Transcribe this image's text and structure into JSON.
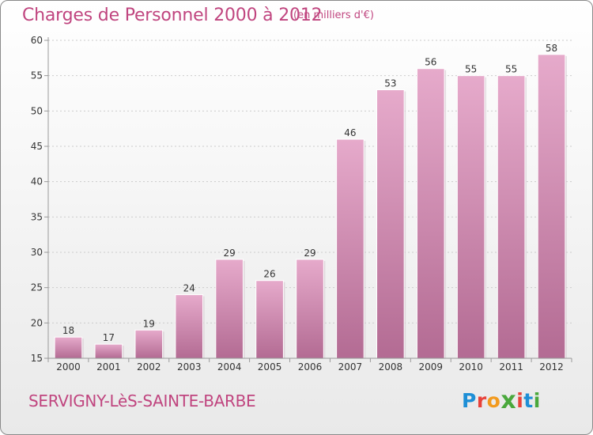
{
  "header": {
    "title": "Charges de Personnel 2000 à 2012",
    "subtitle": "(en milliers d'€)"
  },
  "footer": {
    "commune": "SERVIGNY-LèS-SAINTE-BARBE",
    "logo_letters": [
      "P",
      "r",
      "o",
      "x",
      "i",
      "t",
      "i"
    ],
    "logo_colors": [
      "#1e8fd6",
      "#e8423a",
      "#f29a1e",
      "#4aa83c",
      "#e8423a",
      "#1e8fd6",
      "#4aa83c"
    ]
  },
  "chart_data": {
    "type": "bar",
    "title": "Charges de Personnel 2000 à 2012",
    "subtitle": "(en milliers d'€)",
    "categories": [
      "2000",
      "2001",
      "2002",
      "2003",
      "2004",
      "2005",
      "2006",
      "2007",
      "2008",
      "2009",
      "2010",
      "2011",
      "2012"
    ],
    "values": [
      18,
      17,
      19,
      24,
      29,
      26,
      29,
      46,
      53,
      56,
      55,
      55,
      58
    ],
    "ylim": [
      15,
      60
    ],
    "yticks": [
      15,
      20,
      25,
      30,
      35,
      40,
      45,
      50,
      55,
      60
    ],
    "grid": true,
    "colors": {
      "bar_light": "#e4a8c8",
      "bar_dark": "#b06890",
      "axis": "#999999",
      "grid": "#cccccc"
    }
  }
}
